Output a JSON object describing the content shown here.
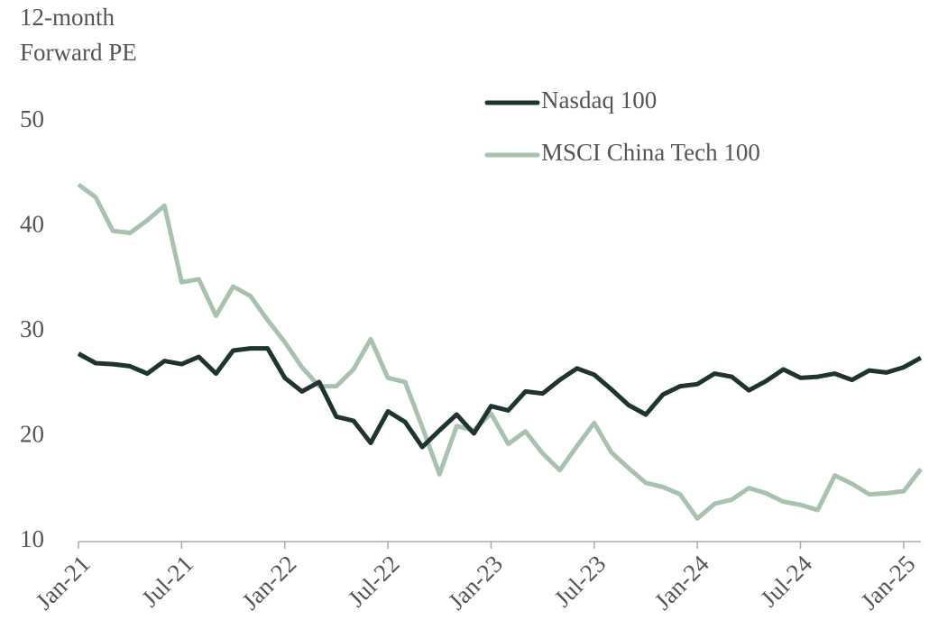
{
  "chart_data": {
    "type": "line",
    "y_label": [
      "12-month",
      "Forward PE"
    ],
    "categories": [
      "Jan-21",
      null,
      null,
      null,
      null,
      null,
      "Jul-21",
      null,
      null,
      null,
      null,
      null,
      "Jan-22",
      null,
      null,
      null,
      null,
      null,
      "Jul-22",
      null,
      null,
      null,
      null,
      null,
      "Jan-23",
      null,
      null,
      null,
      null,
      null,
      "Jul-23",
      null,
      null,
      null,
      null,
      null,
      "Jan-24",
      null,
      null,
      null,
      null,
      null,
      "Jul-24",
      null,
      null,
      null,
      null,
      null,
      "Jan-25",
      null
    ],
    "series": [
      {
        "name": "Nasdaq 100",
        "color": "#1f3330",
        "values": [
          27.9,
          27.0,
          26.9,
          26.7,
          26.0,
          27.2,
          26.9,
          27.6,
          26.0,
          28.2,
          28.4,
          28.4,
          25.6,
          24.3,
          25.2,
          21.9,
          21.5,
          19.4,
          22.4,
          21.4,
          19.0,
          20.6,
          22.1,
          20.3,
          22.9,
          22.5,
          24.3,
          24.1,
          25.4,
          26.5,
          25.9,
          24.5,
          23.0,
          22.1,
          24.0,
          24.8,
          25.0,
          26.0,
          25.7,
          24.4,
          25.3,
          26.4,
          25.6,
          25.7,
          26.0,
          25.4,
          26.3,
          26.1,
          26.6,
          27.5
        ]
      },
      {
        "name": "MSCI China Tech 100",
        "color": "#a9c2b0",
        "values": [
          44.0,
          42.8,
          39.6,
          39.4,
          40.6,
          42.0,
          34.7,
          35.0,
          31.5,
          34.3,
          33.4,
          31.1,
          29.0,
          26.6,
          24.8,
          24.8,
          26.4,
          29.3,
          25.6,
          25.2,
          20.9,
          16.4,
          21.0,
          20.6,
          22.2,
          19.3,
          20.5,
          18.4,
          16.8,
          19.1,
          21.3,
          18.5,
          17.0,
          15.6,
          15.2,
          14.5,
          12.2,
          13.6,
          14.0,
          15.1,
          14.6,
          13.8,
          13.5,
          13.0,
          16.3,
          15.5,
          14.5,
          14.6,
          14.8,
          16.9
        ]
      }
    ],
    "ylim": [
      10,
      50
    ],
    "yticks": [
      10,
      20,
      30,
      40,
      50
    ],
    "grid": false,
    "legend": "top-right"
  }
}
